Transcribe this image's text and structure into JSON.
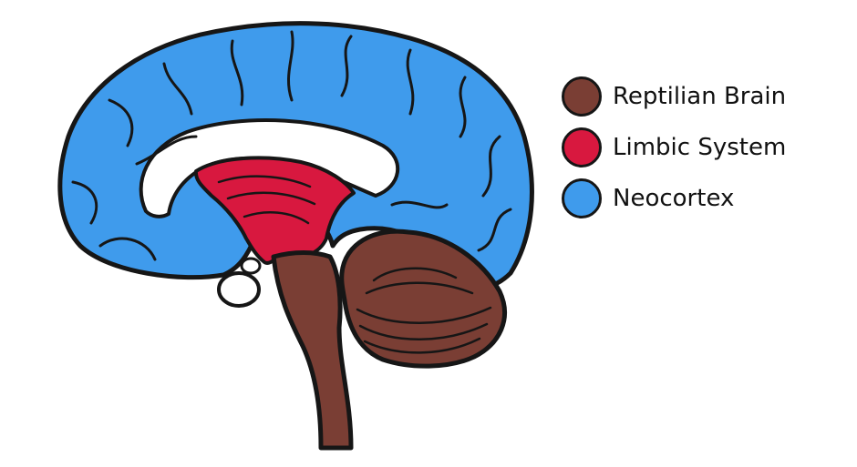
{
  "legend": {
    "items": [
      {
        "label": "Reptilian Brain",
        "color": "#7a3e34"
      },
      {
        "label": "Limbic System",
        "color": "#d8183f"
      },
      {
        "label": "Neocortex",
        "color": "#3f9bec"
      }
    ]
  },
  "colors": {
    "neocortex": "#3f9bec",
    "limbic": "#d8183f",
    "reptilian": "#7a3e34",
    "outline": "#161616"
  }
}
